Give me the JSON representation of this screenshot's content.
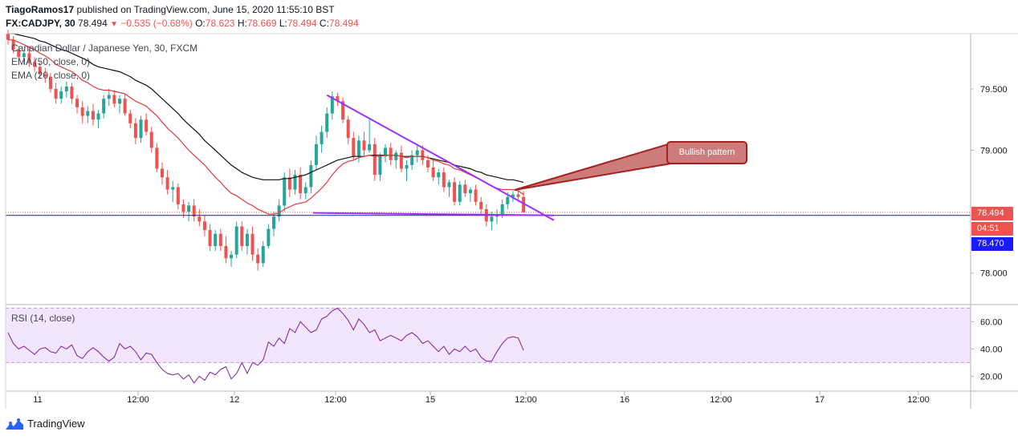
{
  "header": {
    "user": "TiagoRamos17",
    "published_text": "published on TradingView.com, June 15, 2020 11:55:10 BST",
    "symbol": "FX:CADJPY, 30",
    "last": "78.494",
    "change": "−0.535 (−0.68%)",
    "ohlc": {
      "o_label": "O:",
      "o": "78.623",
      "h_label": "H:",
      "h": "78.669",
      "l_label": "L:",
      "l": "78.494",
      "c_label": "C:",
      "c": "78.494"
    }
  },
  "legend": {
    "title": "Canadian Dollar / Japanese Yen, 30, FXCM",
    "ema50": "EMA (50, close, 0)",
    "ema20": "EMA (20, close, 0)",
    "rsi": "RSI (14, close)"
  },
  "annotation": {
    "text": "Bullish pattern"
  },
  "price_tags": {
    "last": "78.494",
    "countdown": "04:51",
    "line": "78.470"
  },
  "footer": {
    "brand": "TradingView"
  },
  "colors": {
    "up": "#26a69a",
    "down": "#ef5350",
    "ema20": "#e03a3a",
    "ema50": "#111111",
    "trendline": "#9b30ff",
    "rsi": "#7b1fa2",
    "rsi_band": "#f3e5fb",
    "callout_border": "#a52222",
    "callout_fill": "#cd7b7b",
    "blue_line": "#1a237e"
  },
  "chart_data": [
    {
      "type": "candlestick",
      "title": "Canadian Dollar / Japanese Yen, 30, FXCM",
      "ylim": [
        77.75,
        79.95
      ],
      "y_ticks": [
        "79.500",
        "79.000",
        "78.000"
      ],
      "y_tick_values": [
        79.5,
        79.0,
        78.0
      ],
      "x_ticks": [
        "11",
        "12:00",
        "12",
        "12:00",
        "15",
        "12:00",
        "16",
        "12:00",
        "17",
        "12:00"
      ],
      "candles_note": "30-minute candles, first bar ~10 Jun 20:00, last bar 15 Jun 11:30",
      "ohlc": [
        [
          79.95,
          79.98,
          79.86,
          79.9
        ],
        [
          79.9,
          79.93,
          79.79,
          79.82
        ],
        [
          79.82,
          79.85,
          79.72,
          79.76
        ],
        [
          79.76,
          79.82,
          79.7,
          79.79
        ],
        [
          79.79,
          79.84,
          79.68,
          79.72
        ],
        [
          79.72,
          79.76,
          79.64,
          79.68
        ],
        [
          79.68,
          79.72,
          79.58,
          79.62
        ],
        [
          79.62,
          79.67,
          79.55,
          79.6
        ],
        [
          79.6,
          79.63,
          79.47,
          79.5
        ],
        [
          79.5,
          79.55,
          79.38,
          79.42
        ],
        [
          79.42,
          79.52,
          79.38,
          79.48
        ],
        [
          79.48,
          79.56,
          79.43,
          79.52
        ],
        [
          79.52,
          79.55,
          79.38,
          79.42
        ],
        [
          79.42,
          79.45,
          79.3,
          79.35
        ],
        [
          79.35,
          79.4,
          79.22,
          79.28
        ],
        [
          79.28,
          79.36,
          79.22,
          79.32
        ],
        [
          79.32,
          79.38,
          79.2,
          79.25
        ],
        [
          79.25,
          79.33,
          79.18,
          79.3
        ],
        [
          79.3,
          79.45,
          79.26,
          79.42
        ],
        [
          79.42,
          79.5,
          79.36,
          79.45
        ],
        [
          79.45,
          79.49,
          79.35,
          79.38
        ],
        [
          79.38,
          79.45,
          79.3,
          79.42
        ],
        [
          79.42,
          79.46,
          79.28,
          79.3
        ],
        [
          79.3,
          79.33,
          79.18,
          79.22
        ],
        [
          79.22,
          79.26,
          79.05,
          79.1
        ],
        [
          79.1,
          79.28,
          79.06,
          79.25
        ],
        [
          79.25,
          79.3,
          79.12,
          79.15
        ],
        [
          79.15,
          79.19,
          78.98,
          79.02
        ],
        [
          79.02,
          79.06,
          78.82,
          78.85
        ],
        [
          78.85,
          78.9,
          78.72,
          78.78
        ],
        [
          78.78,
          78.84,
          78.64,
          78.68
        ],
        [
          78.68,
          78.75,
          78.58,
          78.7
        ],
        [
          78.7,
          78.73,
          78.52,
          78.56
        ],
        [
          78.56,
          78.6,
          78.45,
          78.5
        ],
        [
          78.5,
          78.58,
          78.42,
          78.55
        ],
        [
          78.55,
          78.6,
          78.42,
          78.46
        ],
        [
          78.46,
          78.52,
          78.38,
          78.42
        ],
        [
          78.42,
          78.47,
          78.3,
          78.35
        ],
        [
          78.35,
          78.4,
          78.18,
          78.22
        ],
        [
          78.22,
          78.35,
          78.18,
          78.32
        ],
        [
          78.32,
          78.36,
          78.18,
          78.22
        ],
        [
          78.22,
          78.3,
          78.08,
          78.12
        ],
        [
          78.12,
          78.18,
          78.05,
          78.15
        ],
        [
          78.15,
          78.42,
          78.12,
          78.38
        ],
        [
          78.38,
          78.42,
          78.18,
          78.22
        ],
        [
          78.22,
          78.36,
          78.15,
          78.32
        ],
        [
          78.32,
          78.38,
          78.1,
          78.15
        ],
        [
          78.15,
          78.2,
          78.02,
          78.08
        ],
        [
          78.08,
          78.26,
          78.05,
          78.22
        ],
        [
          78.22,
          78.4,
          78.2,
          78.36
        ],
        [
          78.36,
          78.5,
          78.3,
          78.46
        ],
        [
          78.46,
          78.6,
          78.42,
          78.55
        ],
        [
          78.55,
          78.82,
          78.5,
          78.78
        ],
        [
          78.78,
          78.85,
          78.62,
          78.68
        ],
        [
          78.68,
          78.84,
          78.64,
          78.8
        ],
        [
          78.8,
          78.86,
          78.6,
          78.65
        ],
        [
          78.65,
          78.74,
          78.6,
          78.7
        ],
        [
          78.7,
          78.92,
          78.65,
          78.88
        ],
        [
          78.88,
          79.12,
          78.84,
          79.05
        ],
        [
          79.05,
          79.2,
          78.98,
          79.15
        ],
        [
          79.15,
          79.35,
          79.1,
          79.3
        ],
        [
          79.3,
          79.48,
          79.25,
          79.44
        ],
        [
          79.44,
          79.47,
          79.36,
          79.4
        ],
        [
          79.4,
          79.43,
          79.22,
          79.25
        ],
        [
          79.25,
          79.28,
          79.05,
          79.1
        ],
        [
          79.1,
          79.15,
          78.92,
          78.95
        ],
        [
          78.95,
          79.12,
          78.9,
          79.08
        ],
        [
          79.08,
          79.15,
          78.95,
          79.0
        ],
        [
          79.0,
          79.25,
          78.98,
          79.05
        ],
        [
          79.05,
          79.1,
          78.75,
          78.8
        ],
        [
          78.8,
          78.98,
          78.75,
          78.95
        ],
        [
          78.95,
          79.05,
          78.9,
          79.02
        ],
        [
          79.02,
          79.06,
          78.88,
          78.92
        ],
        [
          78.92,
          79.0,
          78.85,
          78.98
        ],
        [
          78.98,
          79.04,
          78.82,
          78.85
        ],
        [
          78.85,
          78.92,
          78.75,
          78.88
        ],
        [
          78.88,
          79.0,
          78.84,
          78.96
        ],
        [
          78.96,
          79.05,
          78.9,
          79.0
        ],
        [
          79.0,
          79.04,
          78.88,
          78.92
        ],
        [
          78.92,
          78.96,
          78.82,
          78.86
        ],
        [
          78.86,
          78.92,
          78.75,
          78.78
        ],
        [
          78.78,
          78.85,
          78.72,
          78.82
        ],
        [
          78.82,
          78.86,
          78.66,
          78.7
        ],
        [
          78.7,
          78.76,
          78.62,
          78.74
        ],
        [
          78.74,
          78.78,
          78.55,
          78.58
        ],
        [
          78.58,
          78.75,
          78.55,
          78.72
        ],
        [
          78.72,
          78.76,
          78.62,
          78.65
        ],
        [
          78.65,
          78.7,
          78.58,
          78.68
        ],
        [
          78.68,
          78.72,
          78.55,
          78.58
        ],
        [
          78.58,
          78.62,
          78.48,
          78.52
        ],
        [
          78.52,
          78.56,
          78.38,
          78.42
        ],
        [
          78.42,
          78.5,
          78.35,
          78.46
        ],
        [
          78.46,
          78.52,
          78.4,
          78.48
        ],
        [
          78.48,
          78.6,
          78.45,
          78.56
        ],
        [
          78.56,
          78.66,
          78.52,
          78.62
        ],
        [
          78.62,
          78.67,
          78.58,
          78.64
        ],
        [
          78.64,
          78.69,
          78.6,
          78.62
        ],
        [
          78.62,
          78.669,
          78.494,
          78.494
        ]
      ],
      "ema20": [
        79.9,
        79.9,
        79.88,
        79.86,
        79.84,
        79.82,
        79.79,
        79.77,
        79.74,
        79.7,
        79.68,
        79.66,
        79.64,
        79.61,
        79.57,
        79.55,
        79.52,
        79.5,
        79.49,
        79.49,
        79.48,
        79.47,
        79.46,
        79.43,
        79.4,
        79.38,
        79.36,
        79.32,
        79.28,
        79.23,
        79.18,
        79.14,
        79.1,
        79.05,
        79.0,
        78.96,
        78.92,
        78.88,
        78.83,
        78.78,
        78.74,
        78.69,
        78.65,
        78.63,
        78.6,
        78.57,
        78.55,
        78.52,
        78.5,
        78.48,
        78.48,
        78.49,
        78.52,
        78.54,
        78.56,
        78.57,
        78.58,
        78.61,
        78.65,
        78.69,
        78.74,
        78.8,
        78.85,
        78.89,
        78.91,
        78.92,
        78.94,
        78.95,
        78.96,
        78.95,
        78.95,
        78.96,
        78.96,
        78.96,
        78.95,
        78.94,
        78.95,
        78.95,
        78.95,
        78.94,
        78.92,
        78.91,
        78.89,
        78.88,
        78.85,
        78.84,
        78.82,
        78.8,
        78.78,
        78.76,
        78.73,
        78.71,
        78.69,
        78.68,
        78.68,
        78.68,
        78.67,
        78.64
      ],
      "ema50": [
        79.95,
        79.95,
        79.94,
        79.93,
        79.92,
        79.91,
        79.89,
        79.88,
        79.86,
        79.84,
        79.82,
        79.81,
        79.79,
        79.77,
        79.75,
        79.73,
        79.7,
        79.68,
        79.67,
        79.66,
        79.65,
        79.64,
        79.62,
        79.6,
        79.57,
        79.55,
        79.53,
        79.5,
        79.46,
        79.42,
        79.38,
        79.34,
        79.3,
        79.25,
        79.21,
        79.17,
        79.13,
        79.08,
        79.04,
        79.0,
        78.96,
        78.92,
        78.88,
        78.85,
        78.82,
        78.8,
        78.78,
        78.77,
        78.76,
        78.76,
        78.76,
        78.76,
        78.77,
        78.77,
        78.78,
        78.79,
        78.8,
        78.82,
        78.84,
        78.86,
        78.88,
        78.9,
        78.92,
        78.93,
        78.94,
        78.95,
        78.95,
        78.95,
        78.96,
        78.96,
        78.96,
        78.96,
        78.96,
        78.96,
        78.95,
        78.95,
        78.95,
        78.95,
        78.95,
        78.94,
        78.93,
        78.92,
        78.91,
        78.9,
        78.88,
        78.87,
        78.86,
        78.85,
        78.83,
        78.82,
        78.8,
        78.79,
        78.78,
        78.77,
        78.76,
        78.76,
        78.75,
        78.74
      ],
      "annotation": "Bullish pattern",
      "last_price": 78.494,
      "horizontal_line": 78.47
    },
    {
      "type": "line",
      "title": "RSI (14, close)",
      "ylim": [
        12,
        72
      ],
      "y_ticks": [
        "60.00",
        "40.00",
        "20.00"
      ],
      "y_tick_values": [
        60,
        40,
        20
      ],
      "band": [
        30,
        70
      ],
      "values": [
        52,
        44,
        40,
        42,
        39,
        36,
        40,
        41,
        38,
        37,
        42,
        40,
        43,
        35,
        33,
        38,
        41,
        38,
        34,
        31,
        34,
        44,
        40,
        42,
        38,
        32,
        37,
        36,
        30,
        25,
        22,
        21,
        22,
        18,
        21,
        15,
        20,
        17,
        23,
        21,
        25,
        27,
        18,
        22,
        30,
        22,
        30,
        28,
        32,
        45,
        42,
        48,
        44,
        55,
        52,
        60,
        56,
        52,
        54,
        62,
        64,
        68,
        70,
        66,
        61,
        54,
        62,
        58,
        52,
        54,
        46,
        48,
        50,
        48,
        46,
        50,
        52,
        49,
        44,
        46,
        42,
        38,
        42,
        36,
        40,
        38,
        42,
        38,
        40,
        34,
        31,
        31,
        38,
        44,
        48,
        49,
        48,
        39
      ]
    }
  ]
}
